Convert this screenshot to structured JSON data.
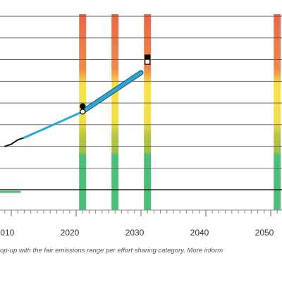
{
  "chart_data": {
    "type": "line",
    "xlim": [
      2008.26,
      2051.74
    ],
    "xticks": [
      2010,
      2020,
      2030,
      2040,
      2050
    ],
    "ylim": [
      -0.94,
      8.1
    ],
    "yticks": [
      0,
      1,
      2,
      3,
      4,
      5,
      6,
      7,
      8
    ],
    "grid": true,
    "range_bars": [
      2021,
      2026,
      2031,
      2051
    ],
    "series": [
      {
        "color": "#111111",
        "width": 2,
        "x": [
          2009,
          2010,
          2011,
          2012
        ],
        "values": [
          2.0,
          2.1,
          2.3,
          2.4
        ]
      },
      {
        "color": "#2aa7d6",
        "width": 3,
        "x": [
          2012,
          2015,
          2018,
          2021
        ],
        "values": [
          2.4,
          2.8,
          3.2,
          3.6
        ]
      },
      {
        "color": "#2aa7d6",
        "width": 5,
        "outline": "#1d4f68",
        "x": [
          2021,
          2030
        ],
        "values": [
          3.6,
          5.4
        ]
      },
      {
        "color": "#4dbf7a",
        "width": 3,
        "x": [
          2008.3,
          2011.3
        ],
        "values": [
          -0.1,
          -0.1
        ]
      }
    ],
    "markers": [
      {
        "shape": "circle",
        "fill": "#000000",
        "x": 2021,
        "value": 3.85
      },
      {
        "shape": "circle",
        "fill": "#ffffff",
        "x": 2021,
        "value": 3.6
      },
      {
        "shape": "square",
        "fill": "#000000",
        "x": 2031,
        "value": 6.1
      },
      {
        "shape": "square",
        "fill": "#ffffff",
        "x": 2031,
        "value": 5.9
      }
    ],
    "note": "op-up with the fair emissions range per effort sharing category. More inform"
  }
}
